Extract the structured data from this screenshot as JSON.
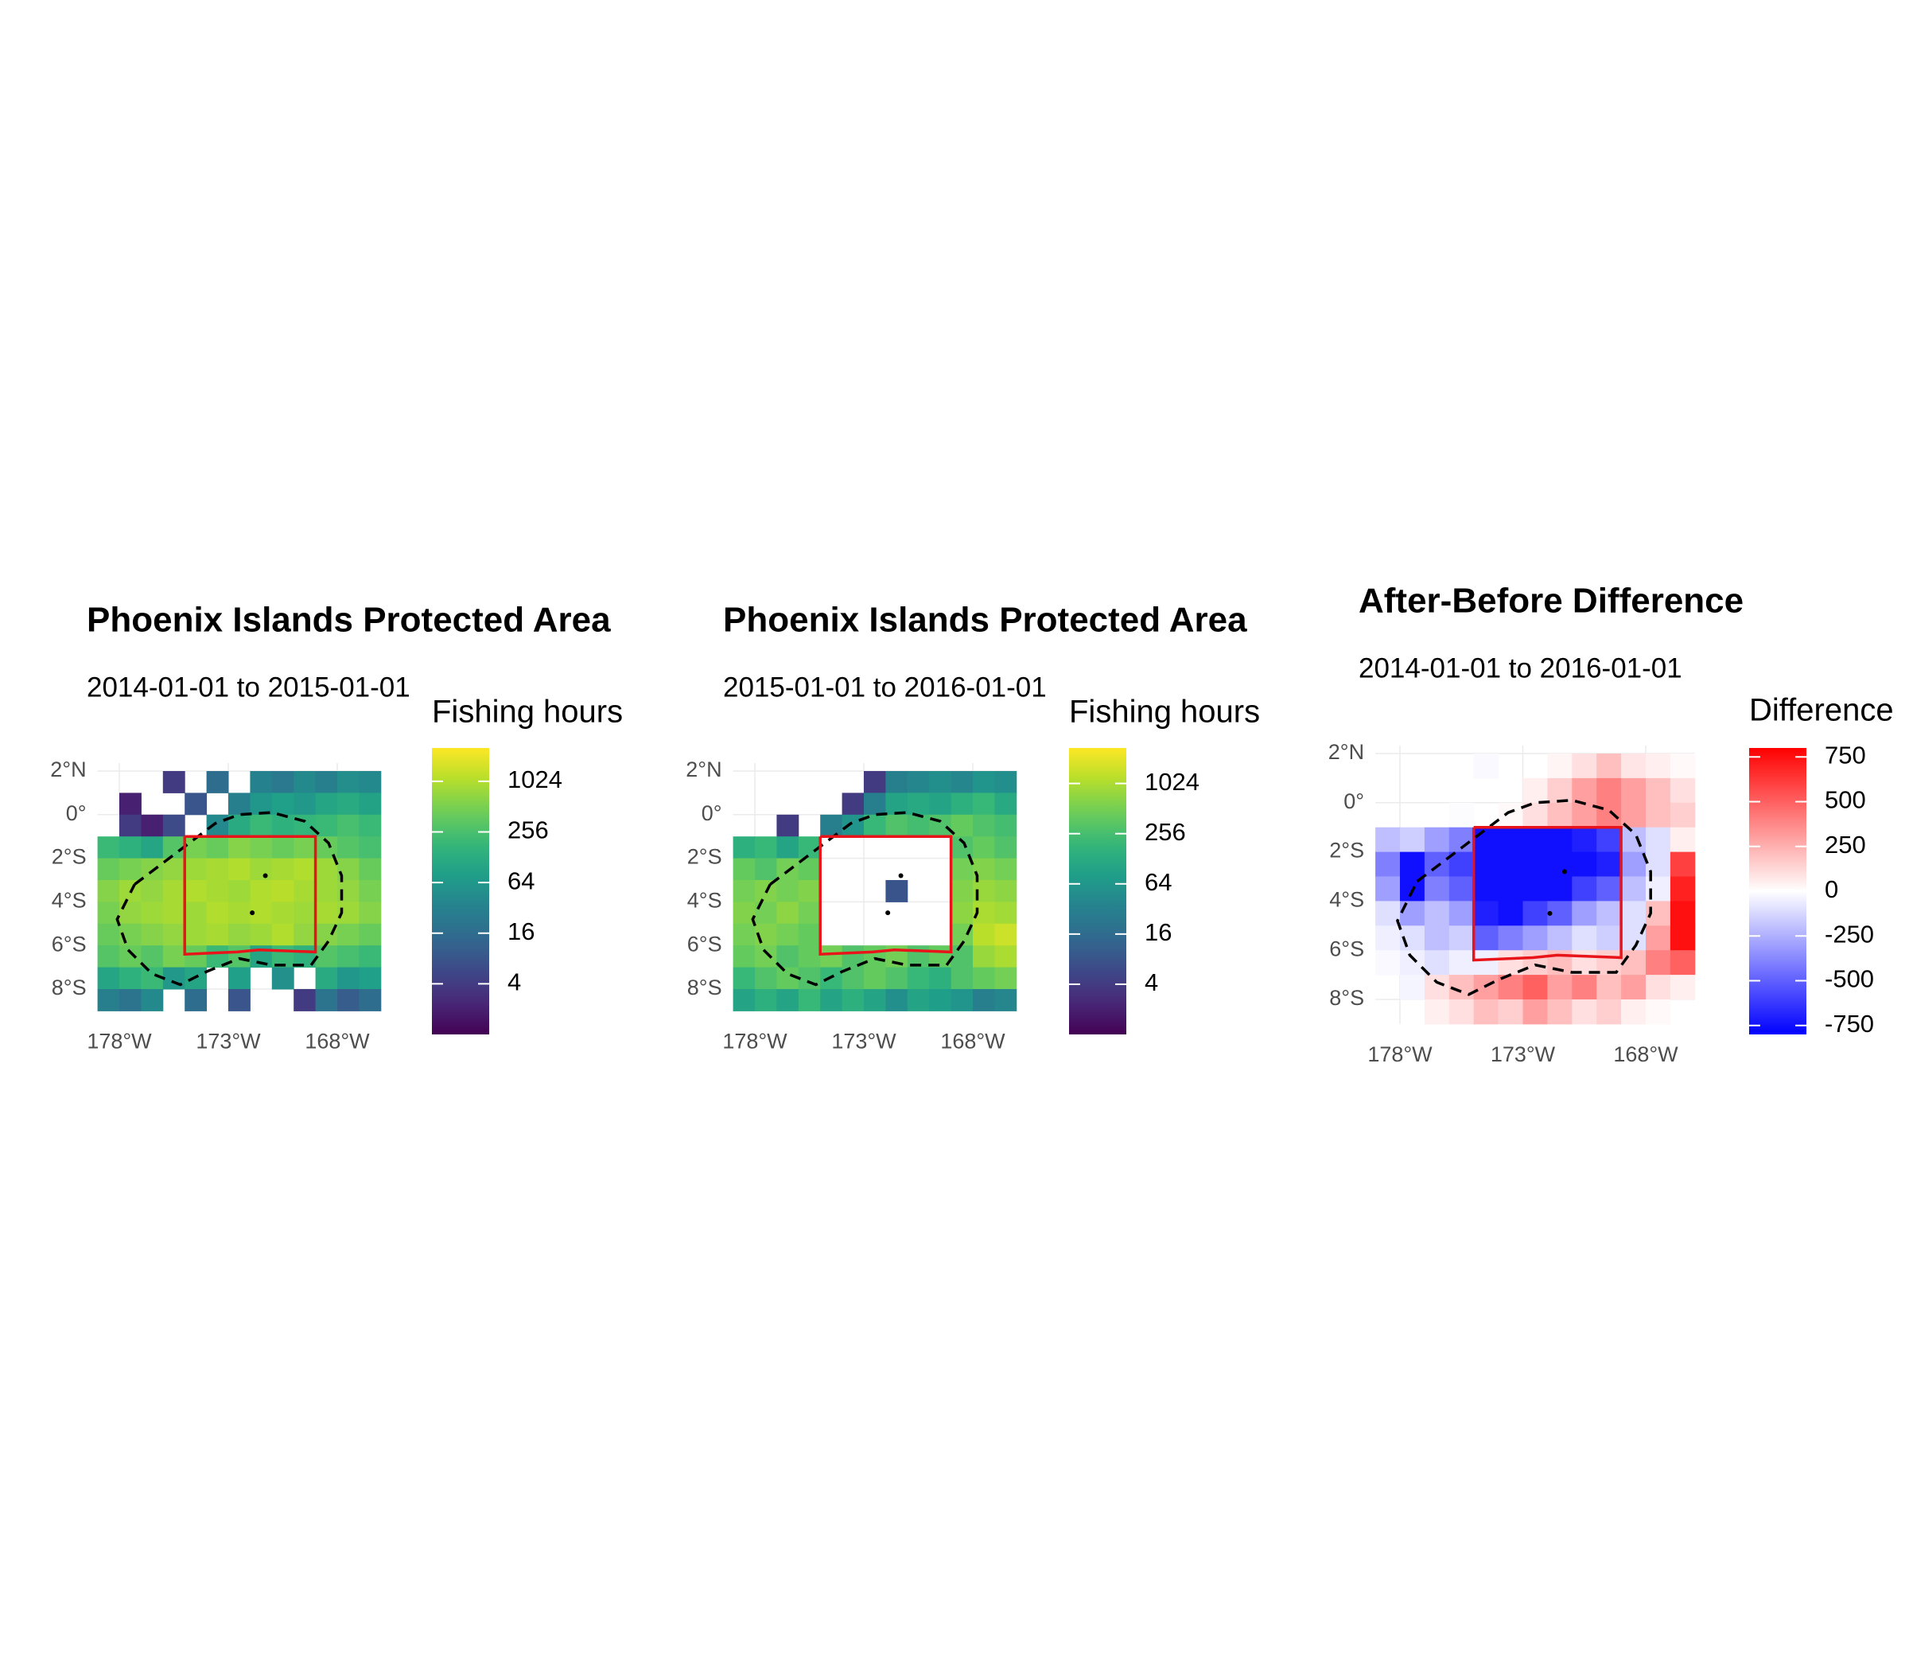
{
  "chart_data": [
    {
      "type": "heatmap",
      "title": "Phoenix Islands Protected Area",
      "subtitle": "2014-01-01 to 2015-01-01",
      "legend_title": "Fishing hours",
      "x": [
        -178.5,
        -177.5,
        -176.5,
        -175.5,
        -174.5,
        -173.5,
        -172.5,
        -171.5,
        -170.5,
        -169.5,
        -168.5,
        -167.5,
        -166.5
      ],
      "y": [
        1.5,
        0.5,
        -0.5,
        -1.5,
        -2.5,
        -3.5,
        -4.5,
        -5.5,
        -6.5,
        -7.5,
        -8.5
      ],
      "z": [
        [
          null,
          null,
          null,
          4,
          null,
          16,
          null,
          32,
          24,
          40,
          30,
          48,
          40
        ],
        [
          null,
          2,
          null,
          null,
          8,
          null,
          30,
          60,
          80,
          64,
          100,
          120,
          90
        ],
        [
          null,
          4,
          2,
          6,
          null,
          40,
          120,
          200,
          150,
          180,
          200,
          250,
          200
        ],
        [
          200,
          150,
          100,
          300,
          500,
          400,
          600,
          500,
          400,
          500,
          400,
          300,
          250
        ],
        [
          400,
          500,
          600,
          700,
          800,
          900,
          1000,
          800,
          900,
          1000,
          800,
          600,
          400
        ],
        [
          600,
          800,
          700,
          900,
          1000,
          900,
          800,
          1000,
          1100,
          900,
          800,
          700,
          500
        ],
        [
          500,
          700,
          800,
          900,
          800,
          1000,
          900,
          1000,
          900,
          800,
          900,
          800,
          600
        ],
        [
          400,
          500,
          600,
          700,
          800,
          900,
          700,
          800,
          1000,
          700,
          600,
          500,
          400
        ],
        [
          300,
          400,
          300,
          500,
          400,
          200,
          300,
          100,
          200,
          150,
          300,
          250,
          200
        ],
        [
          100,
          150,
          200,
          64,
          100,
          null,
          80,
          null,
          50,
          null,
          120,
          60,
          80
        ],
        [
          30,
          20,
          40,
          null,
          16,
          null,
          8,
          null,
          null,
          4,
          20,
          10,
          16
        ]
      ],
      "xlim": [
        -179,
        -166
      ],
      "ylim": [
        -9,
        2
      ],
      "xticks": [
        {
          "value": -178,
          "label": "178°W"
        },
        {
          "value": -173,
          "label": "173°W"
        },
        {
          "value": -168,
          "label": "168°W"
        }
      ],
      "yticks": [
        {
          "value": 2,
          "label": "2°N"
        },
        {
          "value": 0,
          "label": "0°"
        },
        {
          "value": -2,
          "label": "2°S"
        },
        {
          "value": -4,
          "label": "4°S"
        },
        {
          "value": -6,
          "label": "6°S"
        },
        {
          "value": -8,
          "label": "8°S"
        }
      ],
      "colorbar": {
        "lim": [
          1,
          2550
        ],
        "ticks": [
          4,
          16,
          64,
          256,
          1024
        ],
        "log": true,
        "colormap": "viridis"
      }
    },
    {
      "type": "heatmap",
      "title": "Phoenix Islands Protected Area",
      "subtitle": "2015-01-01 to 2016-01-01",
      "legend_title": "Fishing hours",
      "x": [
        -178.5,
        -177.5,
        -176.5,
        -175.5,
        -174.5,
        -173.5,
        -172.5,
        -171.5,
        -170.5,
        -169.5,
        -168.5,
        -167.5,
        -166.5
      ],
      "y": [
        1.5,
        0.5,
        -0.5,
        -1.5,
        -2.5,
        -3.5,
        -4.5,
        -5.5,
        -6.5,
        -7.5,
        -8.5
      ],
      "z": [
        [
          null,
          null,
          null,
          null,
          null,
          null,
          4,
          30,
          40,
          50,
          40,
          60,
          50
        ],
        [
          null,
          null,
          null,
          null,
          null,
          4,
          30,
          100,
          120,
          100,
          150,
          200,
          120
        ],
        [
          null,
          null,
          4,
          null,
          30,
          60,
          200,
          300,
          250,
          300,
          400,
          300,
          250
        ],
        [
          150,
          200,
          100,
          200,
          null,
          null,
          null,
          null,
          null,
          null,
          300,
          400,
          300
        ],
        [
          400,
          300,
          500,
          400,
          null,
          null,
          null,
          null,
          null,
          null,
          500,
          600,
          500
        ],
        [
          500,
          600,
          500,
          600,
          null,
          null,
          null,
          8,
          null,
          null,
          600,
          800,
          700
        ],
        [
          600,
          500,
          700,
          500,
          null,
          null,
          null,
          null,
          null,
          null,
          700,
          1000,
          900
        ],
        [
          500,
          600,
          500,
          400,
          null,
          null,
          null,
          null,
          null,
          null,
          500,
          1200,
          1500
        ],
        [
          400,
          500,
          300,
          400,
          500,
          300,
          400,
          500,
          300,
          400,
          300,
          800,
          1000
        ],
        [
          200,
          300,
          400,
          300,
          200,
          300,
          400,
          300,
          200,
          150,
          300,
          400,
          500
        ],
        [
          100,
          150,
          100,
          200,
          100,
          150,
          100,
          50,
          100,
          80,
          60,
          30,
          40
        ]
      ],
      "xlim": [
        -179,
        -166
      ],
      "ylim": [
        -9,
        2
      ],
      "xticks": [
        {
          "value": -178,
          "label": "178°W"
        },
        {
          "value": -173,
          "label": "173°W"
        },
        {
          "value": -168,
          "label": "168°W"
        }
      ],
      "yticks": [
        {
          "value": 2,
          "label": "2°N"
        },
        {
          "value": 0,
          "label": "0°"
        },
        {
          "value": -2,
          "label": "2°S"
        },
        {
          "value": -4,
          "label": "4°S"
        },
        {
          "value": -6,
          "label": "6°S"
        },
        {
          "value": -8,
          "label": "8°S"
        }
      ],
      "colorbar": {
        "lim": [
          1,
          2730
        ],
        "ticks": [
          4,
          16,
          64,
          256,
          1024
        ],
        "log": true,
        "colormap": "viridis"
      }
    },
    {
      "type": "heatmap",
      "title": "After-Before Difference",
      "subtitle": "2014-01-01 to 2016-01-01",
      "legend_title": "Difference",
      "x": [
        -178.5,
        -177.5,
        -176.5,
        -175.5,
        -174.5,
        -173.5,
        -172.5,
        -171.5,
        -170.5,
        -169.5,
        -168.5,
        -167.5,
        -166.5
      ],
      "y": [
        1.5,
        0.5,
        -0.5,
        -1.5,
        -2.5,
        -3.5,
        -4.5,
        -5.5,
        -6.5,
        -7.5,
        -8.5
      ],
      "z": [
        [
          null,
          null,
          null,
          null,
          -20,
          null,
          null,
          30,
          100,
          200,
          80,
          50,
          20
        ],
        [
          null,
          null,
          null,
          null,
          null,
          null,
          50,
          150,
          300,
          400,
          300,
          200,
          100
        ],
        [
          null,
          null,
          null,
          -10,
          null,
          20,
          100,
          200,
          300,
          400,
          300,
          200,
          150
        ],
        [
          -200,
          -150,
          -300,
          -400,
          -750,
          -750,
          -750,
          -750,
          -700,
          -600,
          -200,
          -100,
          50
        ],
        [
          -400,
          -750,
          -500,
          -600,
          -750,
          -750,
          -750,
          -750,
          -750,
          -700,
          -300,
          -100,
          600
        ],
        [
          -300,
          -750,
          -400,
          -500,
          -750,
          -750,
          -750,
          -750,
          -600,
          -500,
          -200,
          -50,
          700
        ],
        [
          -100,
          -300,
          -200,
          -300,
          -700,
          -750,
          -600,
          -500,
          -300,
          -200,
          -100,
          200,
          750
        ],
        [
          -50,
          -100,
          -200,
          -150,
          -500,
          -400,
          -300,
          -200,
          -100,
          -150,
          -100,
          300,
          750
        ],
        [
          -20,
          -50,
          -100,
          -50,
          -50,
          100,
          150,
          200,
          100,
          150,
          200,
          400,
          500
        ],
        [
          null,
          -30,
          100,
          200,
          300,
          400,
          500,
          300,
          400,
          200,
          300,
          100,
          50
        ],
        [
          null,
          null,
          50,
          100,
          200,
          150,
          300,
          200,
          100,
          150,
          50,
          20,
          null
        ]
      ],
      "xlim": [
        -179,
        -166
      ],
      "ylim": [
        -9,
        2
      ],
      "xticks": [
        {
          "value": -178,
          "label": "178°W"
        },
        {
          "value": -173,
          "label": "173°W"
        },
        {
          "value": -168,
          "label": "168°W"
        }
      ],
      "yticks": [
        {
          "value": 2,
          "label": "2°N"
        },
        {
          "value": 0,
          "label": "0°"
        },
        {
          "value": -2,
          "label": "2°S"
        },
        {
          "value": -4,
          "label": "4°S"
        },
        {
          "value": -6,
          "label": "6°S"
        },
        {
          "value": -8,
          "label": "8°S"
        }
      ],
      "colorbar": {
        "lim": [
          -800,
          800
        ],
        "ticks": [
          -750,
          -500,
          -250,
          0,
          250,
          500,
          750
        ],
        "log": false,
        "colors": [
          "#0000ff",
          "#ffffff",
          "#ff0000"
        ]
      }
    }
  ]
}
